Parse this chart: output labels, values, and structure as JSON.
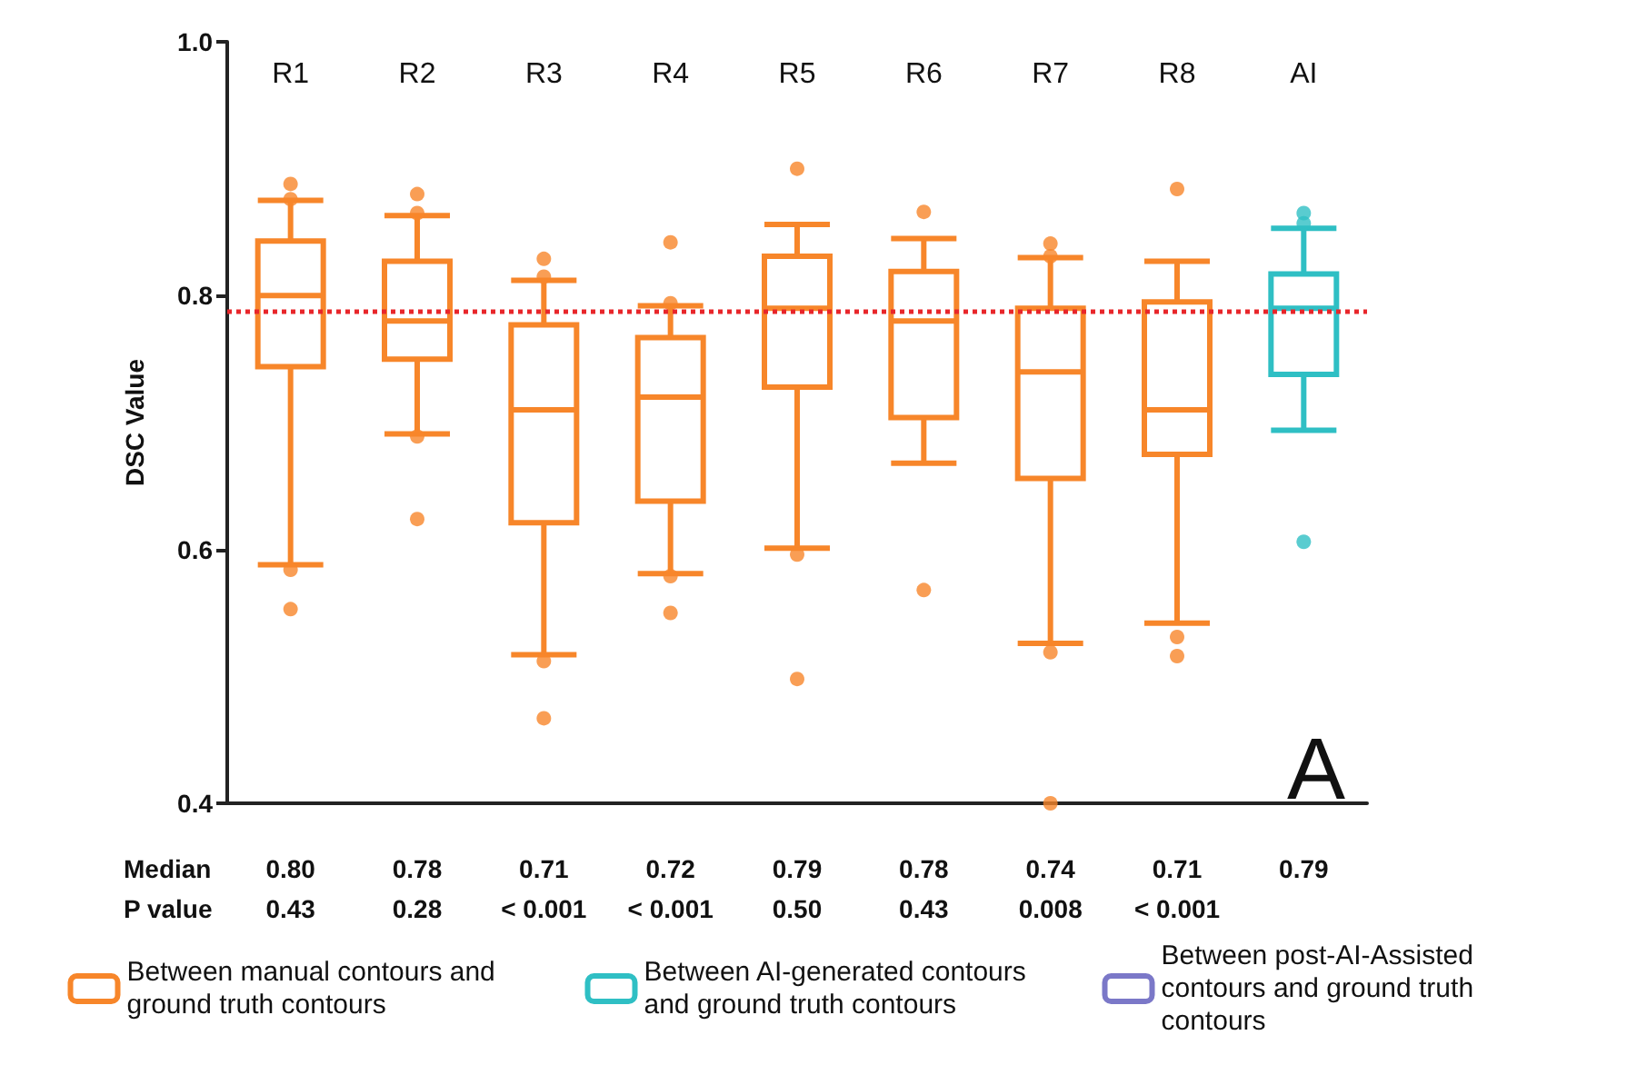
{
  "chart_data": {
    "type": "box",
    "ylabel": "DSC Value",
    "categories": [
      "R1",
      "R2",
      "R3",
      "R4",
      "R5",
      "R6",
      "R7",
      "R8",
      "AI"
    ],
    "ylim": [
      0.4,
      1.0
    ],
    "yticks": [
      0.4,
      0.6,
      0.8,
      {
        "value": 1.0,
        "label": "1.0"
      }
    ],
    "grid": false,
    "legend": "bottom",
    "ref_lines": [
      {
        "axis": "y",
        "value": 0.787,
        "color": "#e8262a",
        "line_style": "dotted"
      }
    ],
    "series": [
      {
        "name": "Between manual contours and ground truth contours",
        "color": "#f7862a",
        "boxes": [
          {
            "low": 0.588,
            "q1": 0.744,
            "median": 0.8,
            "q3": 0.843,
            "high": 0.875,
            "outliers": [
              0.888,
              0.876,
              0.584,
              0.553
            ]
          },
          {
            "low": 0.691,
            "q1": 0.75,
            "median": 0.78,
            "q3": 0.827,
            "high": 0.863,
            "outliers": [
              0.88,
              0.865,
              0.689,
              0.624
            ]
          },
          {
            "low": 0.517,
            "q1": 0.621,
            "median": 0.71,
            "q3": 0.777,
            "high": 0.812,
            "outliers": [
              0.829,
              0.815,
              0.512,
              0.467
            ]
          },
          {
            "low": 0.581,
            "q1": 0.638,
            "median": 0.72,
            "q3": 0.767,
            "high": 0.792,
            "outliers": [
              0.842,
              0.794,
              0.579,
              0.55
            ]
          },
          {
            "low": 0.601,
            "q1": 0.728,
            "median": 0.79,
            "q3": 0.831,
            "high": 0.856,
            "outliers": [
              0.9,
              0.596,
              0.498
            ]
          },
          {
            "low": 0.668,
            "q1": 0.704,
            "median": 0.78,
            "q3": 0.819,
            "high": 0.845,
            "outliers": [
              0.866,
              0.568
            ]
          },
          {
            "low": 0.526,
            "q1": 0.656,
            "median": 0.74,
            "q3": 0.79,
            "high": 0.83,
            "outliers": [
              0.841,
              0.831,
              0.519,
              0.4
            ]
          },
          {
            "low": 0.542,
            "q1": 0.675,
            "median": 0.71,
            "q3": 0.795,
            "high": 0.827,
            "outliers": [
              0.884,
              0.531,
              0.516
            ]
          },
          null
        ]
      },
      {
        "name": "Between AI-generated contours and ground truth contours",
        "color": "#2fbfc4",
        "boxes": [
          null,
          null,
          null,
          null,
          null,
          null,
          null,
          null,
          {
            "low": 0.694,
            "q1": 0.738,
            "median": 0.79,
            "q3": 0.817,
            "high": 0.853,
            "outliers": [
              0.865,
              0.857,
              0.606
            ]
          }
        ]
      },
      {
        "name": "Between post-AI-Assisted contours and ground truth contours",
        "color": "#7b78c8",
        "boxes": [
          null,
          null,
          null,
          null,
          null,
          null,
          null,
          null,
          null
        ]
      }
    ],
    "annotations": [
      "A",
      "Median",
      "P value",
      "0.80",
      "0.78",
      "0.71",
      "0.72",
      "0.79",
      "0.78",
      "0.74",
      "0.71",
      "0.79",
      "0.43",
      "0.28",
      "< 0.001",
      "< 0.001",
      "0.50",
      "0.43",
      "0.008",
      "< 0.001"
    ]
  }
}
